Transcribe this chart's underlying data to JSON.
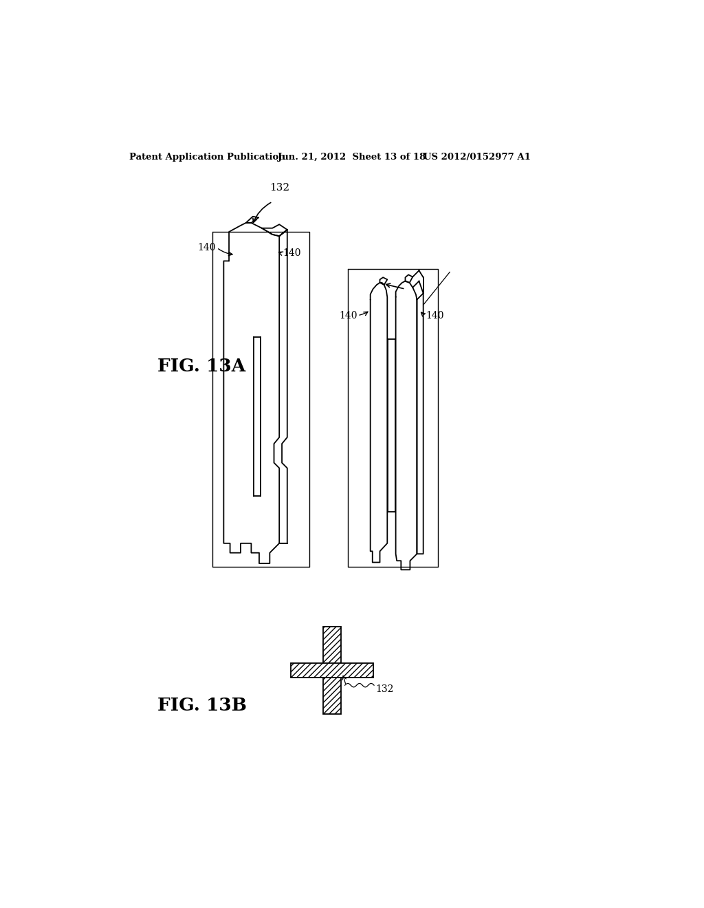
{
  "bg_color": "#ffffff",
  "header_text": "Patent Application Publication",
  "header_date": "Jun. 21, 2012  Sheet 13 of 18",
  "header_patent": "US 2012/0152977 A1",
  "fig13a_label": "FIG. 13A",
  "fig13b_label": "FIG. 13B",
  "label_132": "132",
  "label_140_1": "140",
  "label_140_2": "140",
  "label_140_3": "140",
  "label_140_4": "140",
  "label_132b": "132"
}
